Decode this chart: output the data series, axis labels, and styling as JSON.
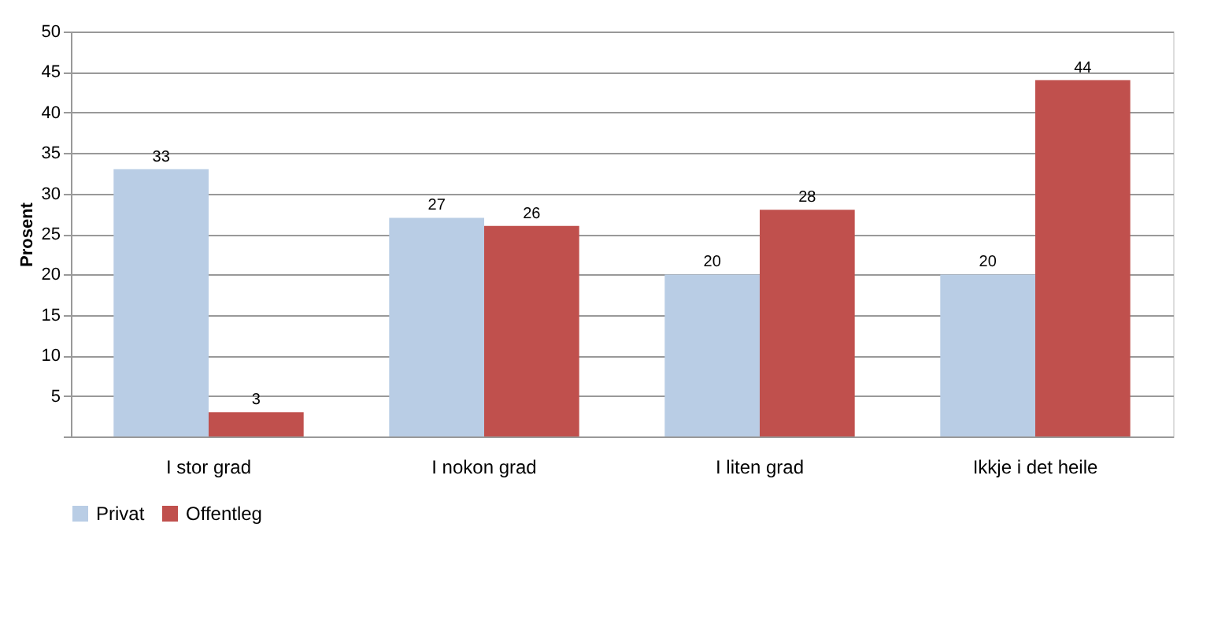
{
  "chart_data": {
    "type": "bar",
    "ylabel": "Prosent",
    "categories": [
      "I stor grad",
      "I nokon grad",
      "I liten grad",
      "Ikkje i det heile"
    ],
    "series": [
      {
        "name": "Privat",
        "color": "#b9cde5",
        "values": [
          33,
          27,
          20,
          20
        ]
      },
      {
        "name": "Offentleg",
        "color": "#c0504d",
        "values": [
          3,
          26,
          28,
          44
        ]
      }
    ],
    "ylim": [
      0,
      50
    ],
    "yticks": [
      {
        "value": 0,
        "label": null
      },
      5,
      10,
      15,
      20,
      25,
      30,
      35,
      40,
      45,
      50
    ],
    "grid": "y",
    "legend": "bottom",
    "data_labels": true
  }
}
